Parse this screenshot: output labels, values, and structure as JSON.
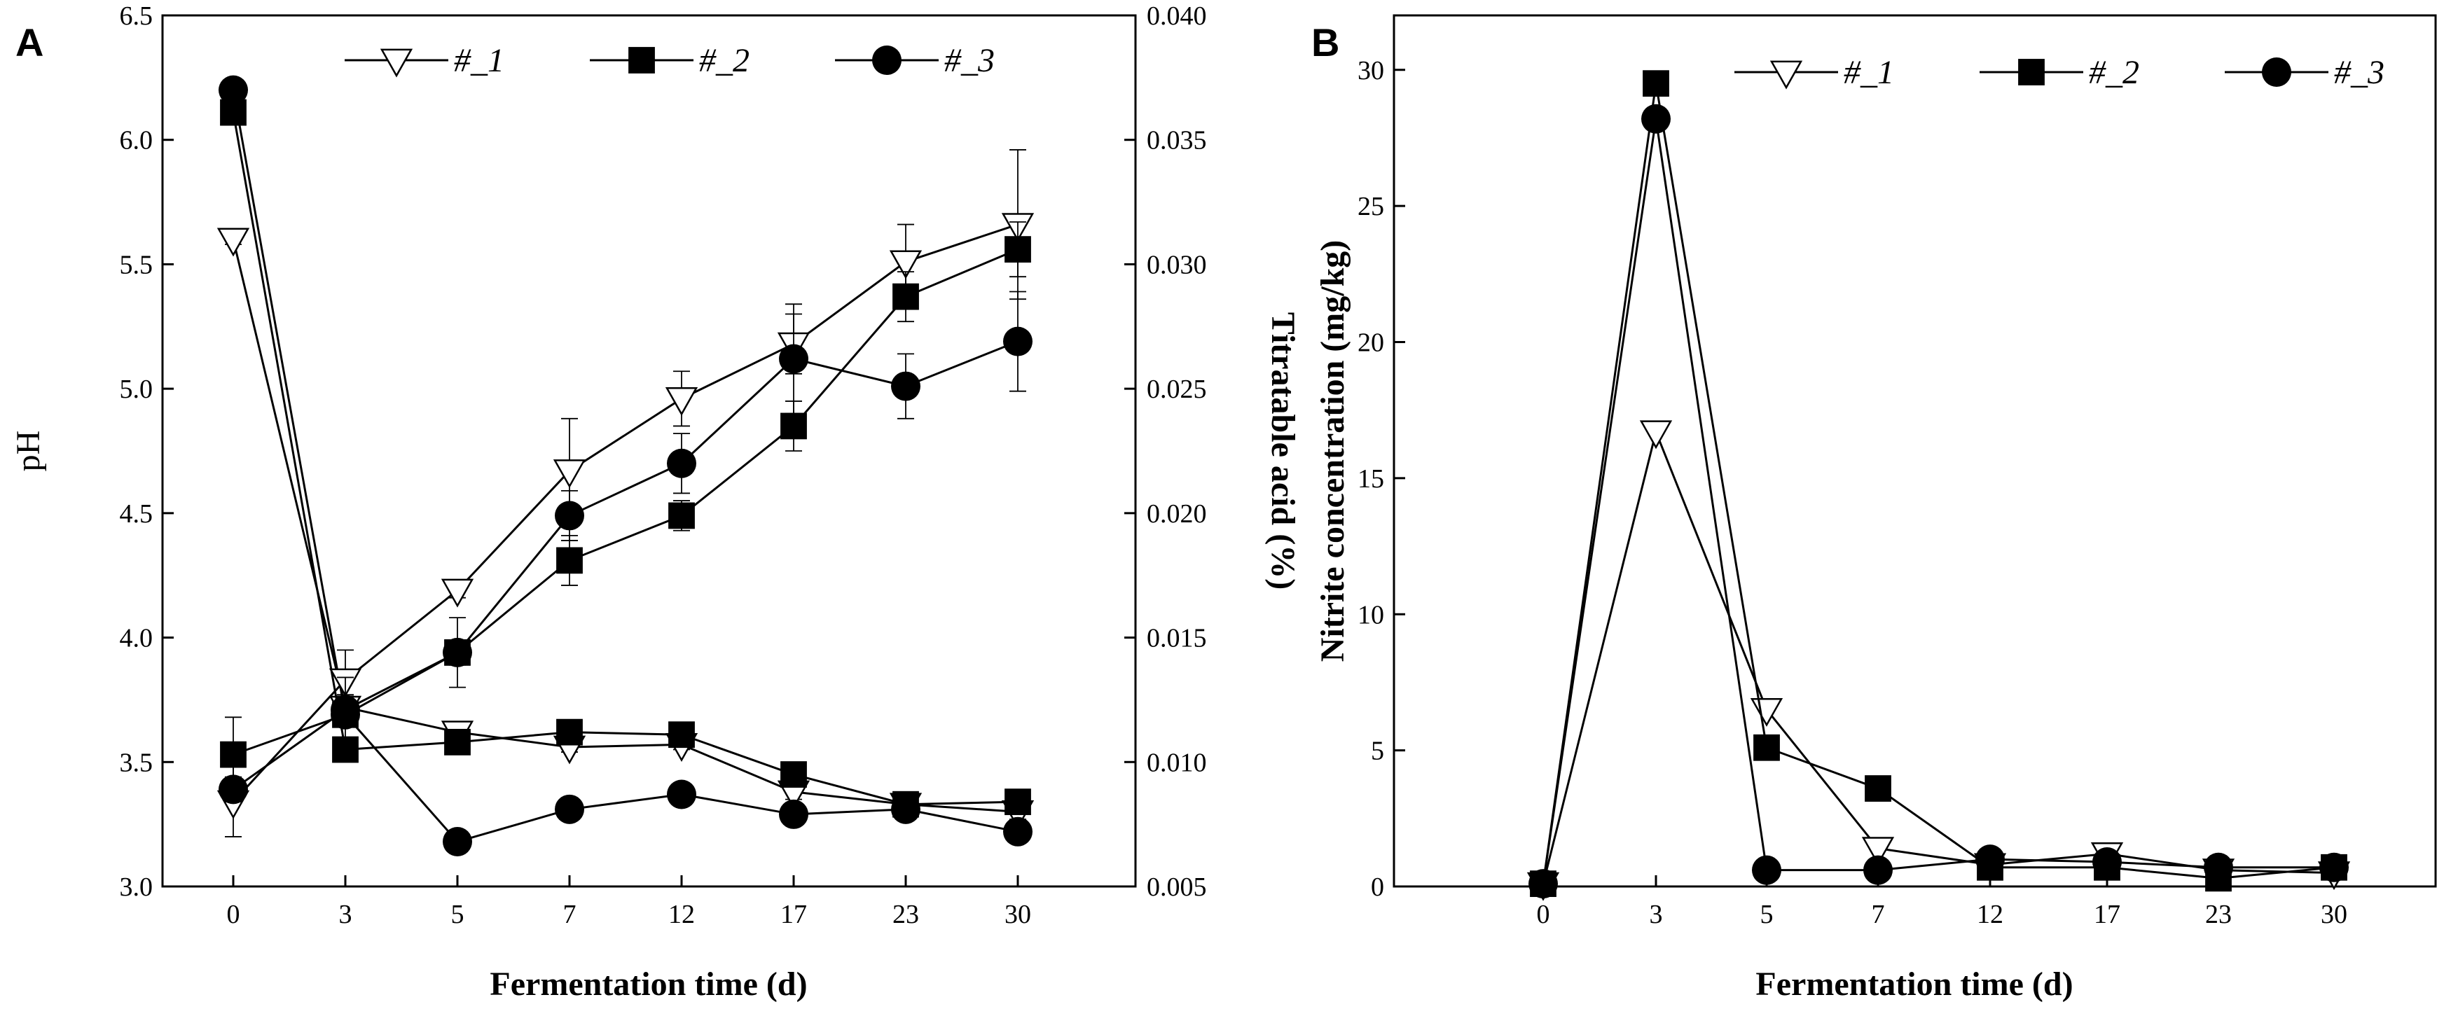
{
  "chart_data": [
    {
      "panel": "A",
      "type": "line",
      "xlabel": "Fermentation time (d)",
      "ylabel": "pH",
      "y2label": "Titratable acid (%)",
      "categories": [
        "0",
        "3",
        "5",
        "7",
        "12",
        "17",
        "23",
        "30"
      ],
      "ylim": [
        3.0,
        6.5
      ],
      "yticks": [
        "3.0",
        "3.5",
        "4.0",
        "4.5",
        "5.0",
        "5.5",
        "6.0",
        "6.5"
      ],
      "y2lim": [
        0.005,
        0.04
      ],
      "y2ticks": [
        "0.005",
        "0.010",
        "0.015",
        "0.020",
        "0.025",
        "0.030",
        "0.035",
        "0.040"
      ],
      "legend": [
        "#_1",
        "#_2",
        "#_3"
      ],
      "series": [
        {
          "name": "#_1",
          "marker": "triangle-open",
          "kind": "pH",
          "values": [
            5.6,
            3.72,
            3.62,
            3.56,
            3.57,
            3.38,
            3.33,
            3.3
          ],
          "errors": [
            0.02,
            0.05,
            0.03,
            0.02,
            0.02,
            0.03,
            0.03,
            0.03
          ]
        },
        {
          "name": "#_2",
          "marker": "square-filled",
          "kind": "pH",
          "values": [
            6.11,
            3.55,
            3.58,
            3.62,
            3.61,
            3.45,
            3.33,
            3.34
          ],
          "errors": [
            0.03,
            0.03,
            0.02,
            0.02,
            0.02,
            0.02,
            0.02,
            0.02
          ]
        },
        {
          "name": "#_3",
          "marker": "circle-filled",
          "kind": "pH",
          "values": [
            6.2,
            3.69,
            3.18,
            3.31,
            3.37,
            3.29,
            3.31,
            3.22
          ],
          "errors": [
            0.03,
            0.03,
            0.02,
            0.02,
            0.02,
            0.02,
            0.02,
            0.02
          ]
        },
        {
          "name": "#_1",
          "marker": "triangle-open",
          "kind": "titratable acid",
          "values": [
            0.0084,
            0.0133,
            0.0169,
            0.0217,
            0.0246,
            0.0268,
            0.0301,
            0.0316
          ],
          "errors": [
            0.0014,
            0.0012,
            0.0003,
            0.0021,
            0.0011,
            0.0012,
            0.0015,
            0.003
          ]
        },
        {
          "name": "#_2",
          "marker": "square-filled",
          "kind": "titratable acid",
          "values": [
            0.0103,
            0.0119,
            0.0144,
            0.0181,
            0.0199,
            0.0235,
            0.0287,
            0.0306
          ],
          "errors": [
            0.0015,
            0.0015,
            0.0014,
            0.001,
            0.0006,
            0.001,
            0.001,
            0.0011
          ]
        },
        {
          "name": "#_3",
          "marker": "circle-filled",
          "kind": "titratable acid",
          "values": [
            0.0089,
            0.0121,
            0.0144,
            0.0199,
            0.022,
            0.0262,
            0.0251,
            0.0269
          ],
          "errors": [
            0.0005,
            0.0006,
            0.0005,
            0.001,
            0.0012,
            0.0022,
            0.0013,
            0.002
          ]
        }
      ]
    },
    {
      "panel": "B",
      "type": "line",
      "xlabel": "Fermentation time (d)",
      "ylabel": "Nitrite concentration (mg/kg)",
      "categories": [
        "0",
        "3",
        "5",
        "7",
        "12",
        "17",
        "23",
        "30"
      ],
      "ylim": [
        0,
        32
      ],
      "yticks": [
        "0",
        "5",
        "10",
        "15",
        "20",
        "25",
        "30"
      ],
      "legend": [
        "#_1",
        "#_2",
        "#_3"
      ],
      "series": [
        {
          "name": "#_1",
          "marker": "triangle-open",
          "values": [
            0.1,
            16.7,
            6.5,
            1.4,
            0.8,
            1.2,
            0.6,
            0.5
          ]
        },
        {
          "name": "#_2",
          "marker": "square-filled",
          "values": [
            0.1,
            29.5,
            5.1,
            3.6,
            0.7,
            0.7,
            0.3,
            0.7
          ]
        },
        {
          "name": "#_3",
          "marker": "circle-filled",
          "values": [
            0.1,
            28.2,
            0.6,
            0.6,
            1.0,
            0.9,
            0.7,
            0.7
          ]
        }
      ]
    }
  ]
}
